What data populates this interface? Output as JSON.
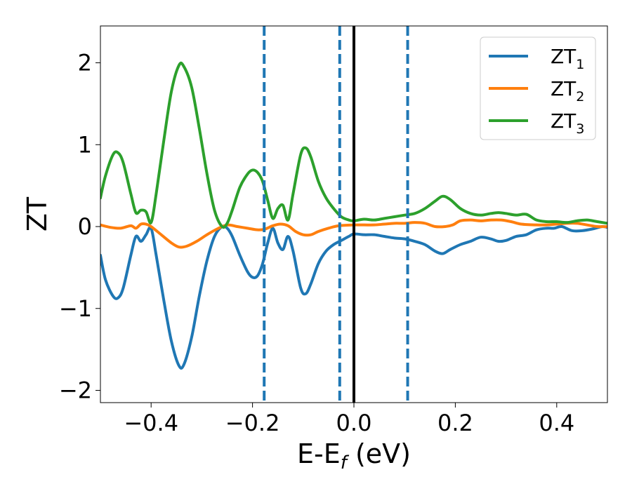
{
  "chart_data": {
    "type": "line",
    "xlabel": {
      "main": "E-E",
      "sub": "f",
      "tail": " (eV)"
    },
    "ylabel": "ZT",
    "xlim": [
      -0.5,
      0.5
    ],
    "ylim": [
      -2.15,
      2.45
    ],
    "xticks": [
      -0.4,
      -0.2,
      0.0,
      0.2,
      0.4
    ],
    "xtick_labels": [
      "−0.4",
      "−0.2",
      "0.0",
      "0.2",
      "0.4"
    ],
    "yticks": [
      -2,
      -1,
      0,
      1,
      2
    ],
    "ytick_labels": [
      "−2",
      "−1",
      "0",
      "1",
      "2"
    ],
    "grid": false,
    "legend_position": "top-right",
    "vertical_lines": [
      {
        "x": -0.177,
        "style": "dashed",
        "color": "#1f77b4"
      },
      {
        "x": -0.028,
        "style": "dashed",
        "color": "#1f77b4"
      },
      {
        "x": 0.0,
        "style": "solid",
        "color": "#000000"
      },
      {
        "x": 0.106,
        "style": "dashed",
        "color": "#1f77b4"
      }
    ],
    "series": [
      {
        "name": "ZT",
        "name_sub": "1",
        "color": "#1f77b4",
        "points": [
          [
            -0.5,
            -0.35
          ],
          [
            -0.49,
            -0.65
          ],
          [
            -0.475,
            -0.85
          ],
          [
            -0.465,
            -0.87
          ],
          [
            -0.455,
            -0.75
          ],
          [
            -0.44,
            -0.35
          ],
          [
            -0.43,
            -0.12
          ],
          [
            -0.42,
            -0.18
          ],
          [
            -0.41,
            -0.1
          ],
          [
            -0.4,
            -0.02
          ],
          [
            -0.39,
            -0.35
          ],
          [
            -0.375,
            -0.9
          ],
          [
            -0.36,
            -1.4
          ],
          [
            -0.345,
            -1.7
          ],
          [
            -0.335,
            -1.68
          ],
          [
            -0.32,
            -1.35
          ],
          [
            -0.305,
            -0.85
          ],
          [
            -0.29,
            -0.42
          ],
          [
            -0.275,
            -0.12
          ],
          [
            -0.26,
            0.0
          ],
          [
            -0.25,
            -0.02
          ],
          [
            -0.24,
            -0.12
          ],
          [
            -0.225,
            -0.35
          ],
          [
            -0.21,
            -0.55
          ],
          [
            -0.2,
            -0.62
          ],
          [
            -0.19,
            -0.6
          ],
          [
            -0.18,
            -0.45
          ],
          [
            -0.17,
            -0.2
          ],
          [
            -0.16,
            -0.02
          ],
          [
            -0.15,
            -0.2
          ],
          [
            -0.14,
            -0.28
          ],
          [
            -0.13,
            -0.12
          ],
          [
            -0.12,
            -0.3
          ],
          [
            -0.105,
            -0.75
          ],
          [
            -0.095,
            -0.82
          ],
          [
            -0.085,
            -0.7
          ],
          [
            -0.07,
            -0.45
          ],
          [
            -0.055,
            -0.3
          ],
          [
            -0.04,
            -0.22
          ],
          [
            -0.025,
            -0.17
          ],
          [
            -0.01,
            -0.12
          ],
          [
            0.0,
            -0.09
          ],
          [
            0.02,
            -0.1
          ],
          [
            0.04,
            -0.1
          ],
          [
            0.06,
            -0.12
          ],
          [
            0.08,
            -0.14
          ],
          [
            0.1,
            -0.15
          ],
          [
            0.12,
            -0.18
          ],
          [
            0.14,
            -0.22
          ],
          [
            0.16,
            -0.3
          ],
          [
            0.175,
            -0.33
          ],
          [
            0.19,
            -0.28
          ],
          [
            0.21,
            -0.22
          ],
          [
            0.23,
            -0.18
          ],
          [
            0.25,
            -0.13
          ],
          [
            0.27,
            -0.15
          ],
          [
            0.285,
            -0.18
          ],
          [
            0.3,
            -0.17
          ],
          [
            0.32,
            -0.12
          ],
          [
            0.34,
            -0.1
          ],
          [
            0.36,
            -0.04
          ],
          [
            0.38,
            -0.02
          ],
          [
            0.395,
            -0.02
          ],
          [
            0.41,
            0.0
          ],
          [
            0.43,
            -0.05
          ],
          [
            0.45,
            -0.05
          ],
          [
            0.47,
            -0.03
          ],
          [
            0.49,
            0.0
          ],
          [
            0.5,
            -0.01
          ]
        ]
      },
      {
        "name": "ZT",
        "name_sub": "2",
        "color": "#ff7f0e",
        "points": [
          [
            -0.5,
            0.02
          ],
          [
            -0.48,
            -0.01
          ],
          [
            -0.46,
            -0.02
          ],
          [
            -0.44,
            0.01
          ],
          [
            -0.43,
            -0.02
          ],
          [
            -0.42,
            0.03
          ],
          [
            -0.41,
            0.03
          ],
          [
            -0.4,
            0.0
          ],
          [
            -0.38,
            -0.1
          ],
          [
            -0.36,
            -0.2
          ],
          [
            -0.345,
            -0.25
          ],
          [
            -0.33,
            -0.24
          ],
          [
            -0.31,
            -0.18
          ],
          [
            -0.29,
            -0.1
          ],
          [
            -0.27,
            -0.03
          ],
          [
            -0.25,
            0.02
          ],
          [
            -0.23,
            0.0
          ],
          [
            -0.21,
            -0.02
          ],
          [
            -0.19,
            -0.04
          ],
          [
            -0.175,
            -0.03
          ],
          [
            -0.16,
            0.01
          ],
          [
            -0.145,
            0.03
          ],
          [
            -0.13,
            0.01
          ],
          [
            -0.115,
            -0.06
          ],
          [
            -0.1,
            -0.1
          ],
          [
            -0.085,
            -0.1
          ],
          [
            -0.07,
            -0.06
          ],
          [
            -0.05,
            -0.02
          ],
          [
            -0.03,
            0.01
          ],
          [
            0.0,
            0.02
          ],
          [
            0.02,
            0.02
          ],
          [
            0.04,
            0.02
          ],
          [
            0.06,
            0.03
          ],
          [
            0.08,
            0.04
          ],
          [
            0.1,
            0.04
          ],
          [
            0.12,
            0.05
          ],
          [
            0.14,
            0.04
          ],
          [
            0.16,
            0.0
          ],
          [
            0.18,
            0.0
          ],
          [
            0.195,
            0.02
          ],
          [
            0.21,
            0.07
          ],
          [
            0.23,
            0.08
          ],
          [
            0.25,
            0.07
          ],
          [
            0.27,
            0.08
          ],
          [
            0.29,
            0.08
          ],
          [
            0.31,
            0.06
          ],
          [
            0.33,
            0.03
          ],
          [
            0.36,
            0.02
          ],
          [
            0.38,
            0.02
          ],
          [
            0.4,
            0.03
          ],
          [
            0.42,
            0.04
          ],
          [
            0.44,
            0.04
          ],
          [
            0.46,
            0.02
          ],
          [
            0.48,
            0.0
          ],
          [
            0.5,
            0.0
          ]
        ]
      },
      {
        "name": "ZT",
        "name_sub": "3",
        "color": "#2ca02c",
        "points": [
          [
            -0.5,
            0.35
          ],
          [
            -0.49,
            0.62
          ],
          [
            -0.475,
            0.88
          ],
          [
            -0.465,
            0.9
          ],
          [
            -0.455,
            0.78
          ],
          [
            -0.44,
            0.4
          ],
          [
            -0.43,
            0.17
          ],
          [
            -0.42,
            0.2
          ],
          [
            -0.41,
            0.18
          ],
          [
            -0.4,
            0.05
          ],
          [
            -0.39,
            0.4
          ],
          [
            -0.375,
            1.05
          ],
          [
            -0.36,
            1.65
          ],
          [
            -0.345,
            1.97
          ],
          [
            -0.335,
            1.95
          ],
          [
            -0.32,
            1.7
          ],
          [
            -0.305,
            1.2
          ],
          [
            -0.29,
            0.65
          ],
          [
            -0.275,
            0.2
          ],
          [
            -0.26,
            0.0
          ],
          [
            -0.25,
            0.04
          ],
          [
            -0.24,
            0.2
          ],
          [
            -0.225,
            0.48
          ],
          [
            -0.21,
            0.64
          ],
          [
            -0.2,
            0.69
          ],
          [
            -0.19,
            0.66
          ],
          [
            -0.18,
            0.55
          ],
          [
            -0.17,
            0.32
          ],
          [
            -0.16,
            0.1
          ],
          [
            -0.15,
            0.22
          ],
          [
            -0.14,
            0.26
          ],
          [
            -0.13,
            0.08
          ],
          [
            -0.12,
            0.4
          ],
          [
            -0.105,
            0.88
          ],
          [
            -0.095,
            0.96
          ],
          [
            -0.085,
            0.85
          ],
          [
            -0.07,
            0.55
          ],
          [
            -0.055,
            0.35
          ],
          [
            -0.04,
            0.22
          ],
          [
            -0.025,
            0.12
          ],
          [
            -0.01,
            0.08
          ],
          [
            0.0,
            0.07
          ],
          [
            0.02,
            0.09
          ],
          [
            0.04,
            0.08
          ],
          [
            0.06,
            0.1
          ],
          [
            0.08,
            0.12
          ],
          [
            0.1,
            0.14
          ],
          [
            0.12,
            0.16
          ],
          [
            0.14,
            0.22
          ],
          [
            0.16,
            0.31
          ],
          [
            0.175,
            0.37
          ],
          [
            0.19,
            0.33
          ],
          [
            0.21,
            0.22
          ],
          [
            0.23,
            0.16
          ],
          [
            0.25,
            0.14
          ],
          [
            0.27,
            0.16
          ],
          [
            0.285,
            0.17
          ],
          [
            0.3,
            0.16
          ],
          [
            0.32,
            0.14
          ],
          [
            0.34,
            0.15
          ],
          [
            0.36,
            0.08
          ],
          [
            0.38,
            0.06
          ],
          [
            0.4,
            0.06
          ],
          [
            0.42,
            0.05
          ],
          [
            0.44,
            0.07
          ],
          [
            0.46,
            0.08
          ],
          [
            0.48,
            0.06
          ],
          [
            0.5,
            0.04
          ]
        ]
      }
    ]
  }
}
